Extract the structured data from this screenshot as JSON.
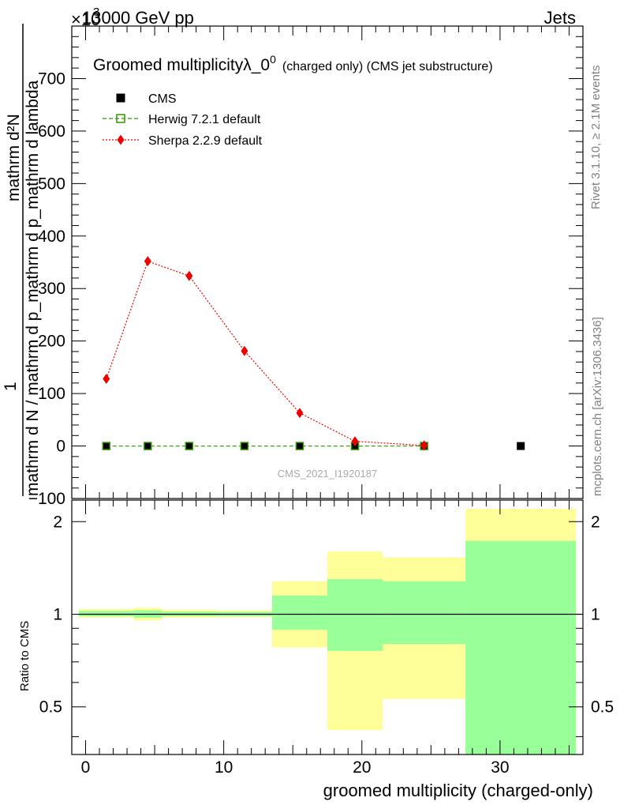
{
  "header": {
    "left": "13000 GeV pp",
    "right": "Jets",
    "exponent_mult": "×10",
    "exponent_power": "3"
  },
  "side_labels": {
    "rivet": "Rivet 3.1.10, ≥ 2.1M events",
    "mcplots": "mcplots.cern.ch [arXiv:1306.3436]"
  },
  "watermark": "CMS_2021_I1920187",
  "chart_data": [
    {
      "type": "scatter",
      "title_main": "Groomed multiplicityλ_0",
      "title_sup": "0",
      "title_sub": "(charged only) (CMS jet substructure)",
      "ylabel_numerator": "mathrm d²N",
      "ylabel_numerator_tail": "1",
      "ylabel_denominator": "mathrm d N / mathrm d p_mathrm d p_mathrm d lambda",
      "xlim": [
        -1,
        36
      ],
      "ylim": [
        -100,
        800
      ],
      "yticks": [
        -100,
        0,
        100,
        200,
        300,
        400,
        500,
        600,
        700
      ],
      "ytick_labels": [
        "−100",
        "0",
        "100",
        "200",
        "300",
        "400",
        "500",
        "600",
        "700"
      ],
      "legend": [
        {
          "label": "CMS",
          "color": "#000000",
          "marker": "square-filled"
        },
        {
          "label": "Herwig 7.2.1 default",
          "color": "#339900",
          "marker": "square-open"
        },
        {
          "label": "Sherpa 2.2.9 default",
          "color": "#ee0000",
          "marker": "diamond"
        }
      ],
      "series": [
        {
          "name": "CMS",
          "x": [
            1.5,
            4.5,
            7.5,
            11.5,
            15.5,
            19.5,
            24.5,
            31.5
          ],
          "y": [
            0,
            0,
            0,
            0,
            0,
            0,
            0,
            0
          ]
        },
        {
          "name": "Herwig 7.2.1 default",
          "x": [
            1.5,
            4.5,
            7.5,
            11.5,
            15.5,
            19.5,
            24.5
          ],
          "y": [
            0,
            0,
            0,
            0,
            0,
            0,
            0
          ]
        },
        {
          "name": "Sherpa 2.2.9 default",
          "x": [
            1.5,
            4.5,
            7.5,
            11.5,
            15.5,
            19.5,
            24.5
          ],
          "y": [
            128,
            352,
            324,
            181,
            63,
            9,
            1
          ]
        }
      ]
    },
    {
      "type": "area",
      "ylabel": "Ratio to CMS",
      "xlabel": "groomed multiplicity (charged-only)",
      "xlim": [
        -1,
        36
      ],
      "ylim": [
        0.35,
        2.35
      ],
      "yscale": "log",
      "yticks": [
        0.5,
        1,
        2
      ],
      "ytick_labels": [
        "0.5",
        "1",
        "2"
      ],
      "xticks": [
        0,
        10,
        20,
        30
      ],
      "xtick_labels": [
        "0",
        "10",
        "20",
        "30"
      ],
      "bands": [
        {
          "x0": -0.5,
          "x1": 3.5,
          "yellow": [
            0.975,
            1.04
          ],
          "green": [
            0.985,
            1.025
          ]
        },
        {
          "x0": 3.5,
          "x1": 5.5,
          "yellow": [
            0.955,
            1.05
          ],
          "green": [
            0.975,
            1.03
          ]
        },
        {
          "x0": 5.5,
          "x1": 9.5,
          "yellow": [
            0.975,
            1.035
          ],
          "green": [
            0.985,
            1.02
          ]
        },
        {
          "x0": 9.5,
          "x1": 13.5,
          "yellow": [
            0.978,
            1.03
          ],
          "green": [
            0.985,
            1.018
          ]
        },
        {
          "x0": 13.5,
          "x1": 17.5,
          "yellow": [
            0.78,
            1.28
          ],
          "green": [
            0.89,
            1.15
          ]
        },
        {
          "x0": 17.5,
          "x1": 21.5,
          "yellow": [
            0.42,
            1.6
          ],
          "green": [
            0.76,
            1.3
          ]
        },
        {
          "x0": 21.5,
          "x1": 27.5,
          "yellow": [
            0.53,
            1.53
          ],
          "green": [
            0.8,
            1.28
          ]
        },
        {
          "x0": 27.5,
          "x1": 35.5,
          "yellow": [
            0.35,
            2.2
          ],
          "green": [
            0.35,
            1.73
          ]
        }
      ]
    }
  ],
  "colors": {
    "yellow": "#ffff99",
    "green": "#99ff99",
    "cms": "#000000",
    "herwig": "#339900",
    "sherpa": "#ee0000",
    "watermark": "#aaaaaa"
  }
}
